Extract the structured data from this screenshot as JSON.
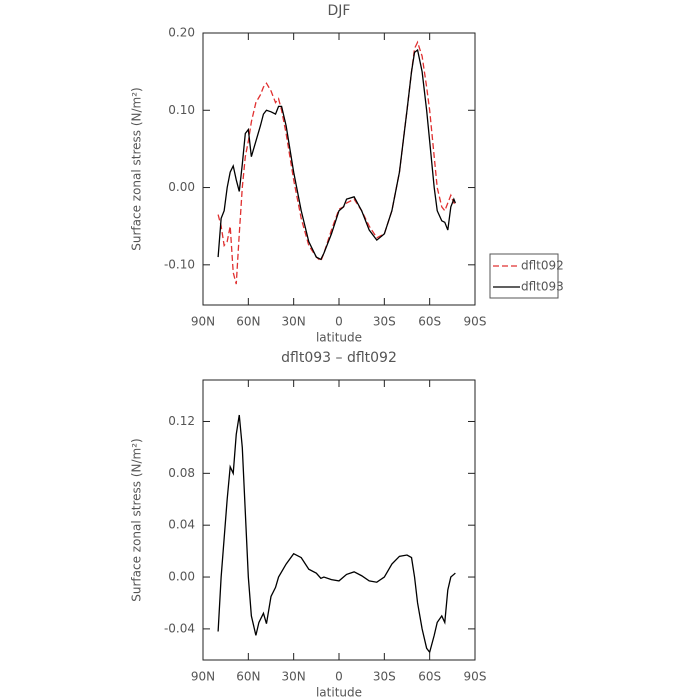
{
  "chart_data": [
    {
      "type": "line",
      "title": "DJF",
      "xlabel": "latitude",
      "ylabel": "Surface zonal stress (N/m²)",
      "x": [
        80,
        78,
        76,
        74,
        72,
        70,
        68,
        66,
        64,
        62,
        60,
        58,
        55,
        52,
        50,
        48,
        45,
        42,
        40,
        38,
        35,
        30,
        25,
        20,
        15,
        12,
        10,
        5,
        0,
        -3,
        -5,
        -10,
        -15,
        -20,
        -25,
        -30,
        -35,
        -40,
        -45,
        -48,
        -50,
        -52,
        -55,
        -58,
        -60,
        -63,
        -65,
        -68,
        -70,
        -72,
        -74,
        -76,
        -77
      ],
      "series": [
        {
          "name": "dflt092",
          "color": "#e03030",
          "linestyle": "dashed",
          "values": [
            -0.035,
            -0.05,
            -0.075,
            -0.07,
            -0.05,
            -0.11,
            -0.125,
            -0.06,
            0.0,
            0.04,
            0.06,
            0.085,
            0.11,
            0.12,
            0.13,
            0.135,
            0.125,
            0.11,
            0.115,
            0.1,
            0.07,
            0.01,
            -0.04,
            -0.075,
            -0.09,
            -0.095,
            -0.085,
            -0.055,
            -0.028,
            -0.025,
            -0.02,
            -0.015,
            -0.03,
            -0.05,
            -0.065,
            -0.06,
            -0.03,
            0.02,
            0.1,
            0.15,
            0.18,
            0.188,
            0.17,
            0.13,
            0.1,
            0.04,
            0.0,
            -0.025,
            -0.03,
            -0.02,
            -0.01,
            -0.02,
            -0.02
          ]
        },
        {
          "name": "dflt093",
          "color": "#000000",
          "linestyle": "solid",
          "values": [
            -0.09,
            -0.04,
            -0.03,
            0.0,
            0.02,
            0.028,
            0.01,
            -0.005,
            0.03,
            0.07,
            0.075,
            0.04,
            0.06,
            0.08,
            0.095,
            0.1,
            0.098,
            0.095,
            0.105,
            0.105,
            0.08,
            0.02,
            -0.03,
            -0.07,
            -0.09,
            -0.093,
            -0.085,
            -0.06,
            -0.03,
            -0.025,
            -0.015,
            -0.012,
            -0.03,
            -0.055,
            -0.068,
            -0.06,
            -0.03,
            0.02,
            0.1,
            0.15,
            0.175,
            0.178,
            0.15,
            0.1,
            0.06,
            0.0,
            -0.03,
            -0.043,
            -0.045,
            -0.055,
            -0.025,
            -0.015,
            -0.02
          ]
        }
      ],
      "xlim": [
        90,
        -90
      ],
      "xticks": [
        {
          "value": 90,
          "label": "90N"
        },
        {
          "value": 60,
          "label": "60N"
        },
        {
          "value": 30,
          "label": "30N"
        },
        0,
        {
          "value": -30,
          "label": "30S"
        },
        {
          "value": -60,
          "label": "60S"
        },
        {
          "value": -90,
          "label": "90S"
        }
      ],
      "ylim": [
        -0.152,
        0.2
      ],
      "yticks": [
        {
          "value": -0.1,
          "label": "-0.10"
        },
        {
          "value": 0,
          "label": "0.00"
        },
        {
          "value": 0.1,
          "label": "0.10"
        },
        {
          "value": 0.2,
          "label": "0.20"
        }
      ],
      "legend": "right"
    },
    {
      "type": "line",
      "title": "dflt093 – dflt092",
      "xlabel": "latitude",
      "ylabel": "Surface zonal stress (N/m²)",
      "x": [
        80,
        78,
        76,
        74,
        72,
        70,
        68,
        66,
        64,
        62,
        60,
        58,
        55,
        53,
        50,
        48,
        45,
        42,
        40,
        35,
        30,
        25,
        20,
        15,
        12,
        10,
        5,
        0,
        -3,
        -5,
        -10,
        -15,
        -20,
        -25,
        -30,
        -35,
        -40,
        -45,
        -48,
        -50,
        -52,
        -55,
        -58,
        -60,
        -63,
        -65,
        -68,
        -70,
        -72,
        -74,
        -76,
        -77
      ],
      "values": [
        -0.042,
        0.0,
        0.03,
        0.06,
        0.085,
        0.08,
        0.11,
        0.125,
        0.1,
        0.05,
        0.0,
        -0.03,
        -0.045,
        -0.035,
        -0.028,
        -0.036,
        -0.015,
        -0.008,
        0.0,
        0.01,
        0.018,
        0.015,
        0.006,
        0.003,
        -0.001,
        0.0,
        -0.002,
        -0.003,
        0.0,
        0.002,
        0.004,
        0.001,
        -0.003,
        -0.004,
        0.0,
        0.01,
        0.016,
        0.017,
        0.015,
        0.0,
        -0.02,
        -0.04,
        -0.055,
        -0.058,
        -0.045,
        -0.035,
        -0.03,
        -0.035,
        -0.01,
        0.0,
        0.002,
        0.003
      ],
      "color": "#000000",
      "xlim": [
        90,
        -90
      ],
      "xticks": [
        {
          "value": 90,
          "label": "90N"
        },
        {
          "value": 60,
          "label": "60N"
        },
        {
          "value": 30,
          "label": "30N"
        },
        0,
        {
          "value": -30,
          "label": "30S"
        },
        {
          "value": -60,
          "label": "60S"
        },
        {
          "value": -90,
          "label": "90S"
        }
      ],
      "ylim": [
        -0.064,
        0.152
      ],
      "yticks": [
        {
          "value": -0.04,
          "label": "-0.04"
        },
        {
          "value": 0,
          "label": "0.00"
        },
        {
          "value": 0.04,
          "label": "0.04"
        },
        {
          "value": 0.08,
          "label": "0.08"
        },
        {
          "value": 0.12,
          "label": "0.12"
        }
      ]
    }
  ]
}
